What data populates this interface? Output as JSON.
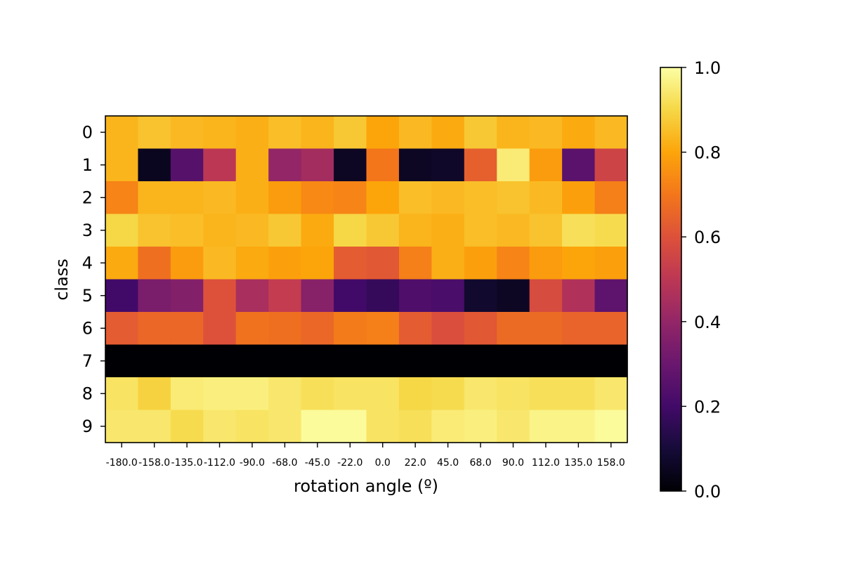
{
  "chart_data": {
    "type": "heatmap",
    "title": "",
    "xlabel": "rotation angle (º)",
    "ylabel": "class",
    "x": [
      "-180.0",
      "-158.0",
      "-135.0",
      "-112.0",
      "-90.0",
      "-68.0",
      "-45.0",
      "-22.0",
      "0.0",
      "22.0",
      "45.0",
      "68.0",
      "90.0",
      "112.0",
      "135.0",
      "158.0"
    ],
    "y": [
      "0",
      "1",
      "2",
      "3",
      "4",
      "5",
      "6",
      "7",
      "8",
      "9"
    ],
    "values": [
      [
        0.83,
        0.86,
        0.84,
        0.83,
        0.82,
        0.85,
        0.83,
        0.87,
        0.8,
        0.84,
        0.81,
        0.87,
        0.83,
        0.84,
        0.81,
        0.84
      ],
      [
        0.83,
        0.05,
        0.25,
        0.5,
        0.82,
        0.4,
        0.44,
        0.06,
        0.7,
        0.06,
        0.07,
        0.64,
        0.95,
        0.78,
        0.26,
        0.55
      ],
      [
        0.73,
        0.83,
        0.83,
        0.84,
        0.82,
        0.78,
        0.74,
        0.73,
        0.8,
        0.85,
        0.84,
        0.85,
        0.86,
        0.84,
        0.79,
        0.72
      ],
      [
        0.9,
        0.86,
        0.85,
        0.83,
        0.84,
        0.87,
        0.81,
        0.9,
        0.87,
        0.83,
        0.82,
        0.85,
        0.84,
        0.86,
        0.92,
        0.91
      ],
      [
        0.81,
        0.68,
        0.78,
        0.84,
        0.81,
        0.79,
        0.8,
        0.63,
        0.62,
        0.72,
        0.82,
        0.79,
        0.73,
        0.78,
        0.8,
        0.79
      ],
      [
        0.2,
        0.34,
        0.36,
        0.6,
        0.45,
        0.52,
        0.37,
        0.2,
        0.17,
        0.23,
        0.22,
        0.08,
        0.06,
        0.58,
        0.47,
        0.27
      ],
      [
        0.63,
        0.66,
        0.66,
        0.6,
        0.69,
        0.68,
        0.66,
        0.71,
        0.72,
        0.63,
        0.59,
        0.62,
        0.67,
        0.67,
        0.65,
        0.65
      ],
      [
        0.0,
        0.0,
        0.0,
        0.0,
        0.0,
        0.0,
        0.0,
        0.0,
        0.0,
        0.0,
        0.0,
        0.0,
        0.0,
        0.0,
        0.0,
        0.0
      ],
      [
        0.93,
        0.89,
        0.95,
        0.96,
        0.96,
        0.94,
        0.92,
        0.93,
        0.93,
        0.9,
        0.91,
        0.94,
        0.93,
        0.92,
        0.92,
        0.94
      ],
      [
        0.94,
        0.94,
        0.91,
        0.94,
        0.93,
        0.94,
        0.99,
        0.99,
        0.93,
        0.92,
        0.95,
        0.96,
        0.94,
        0.97,
        0.97,
        0.99
      ]
    ],
    "colormap": "inferno",
    "colorbar": {
      "ticks": [
        "0.0",
        "0.2",
        "0.4",
        "0.6",
        "0.8",
        "1.0"
      ],
      "range": [
        0.0,
        1.0
      ]
    },
    "grid": false
  }
}
